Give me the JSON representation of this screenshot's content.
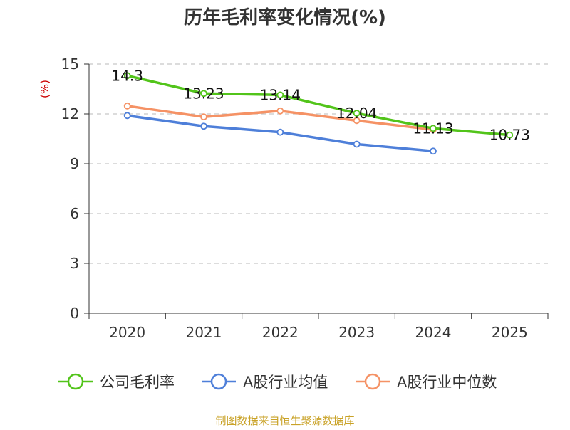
{
  "chart_data": {
    "type": "line",
    "title": "历年毛利率变化情况(%)",
    "xlabel": "",
    "ylabel": "(%)",
    "categories": [
      "2020",
      "2021",
      "2022",
      "2023",
      "2024",
      "2025"
    ],
    "ylim": [
      0,
      15
    ],
    "yticks": [
      0,
      3,
      6,
      9,
      12,
      15
    ],
    "grid": true,
    "legend_position": "bottom",
    "series": [
      {
        "name": "公司毛利率",
        "color": "#52c41a",
        "values": [
          14.3,
          13.23,
          13.14,
          12.04,
          11.13,
          10.73
        ],
        "labels": [
          "14.3",
          "13.23",
          "13.14",
          "12.04",
          "11.13",
          "10.73"
        ]
      },
      {
        "name": "A股行业均值",
        "color": "#4e7fd9",
        "values": [
          11.9,
          11.26,
          10.9,
          10.18,
          9.76,
          null
        ]
      },
      {
        "name": "A股行业中位数",
        "color": "#f59265",
        "values": [
          12.48,
          11.82,
          12.18,
          11.6,
          11.05,
          null
        ]
      }
    ]
  },
  "footer": "制图数据来自恒生聚源数据库"
}
